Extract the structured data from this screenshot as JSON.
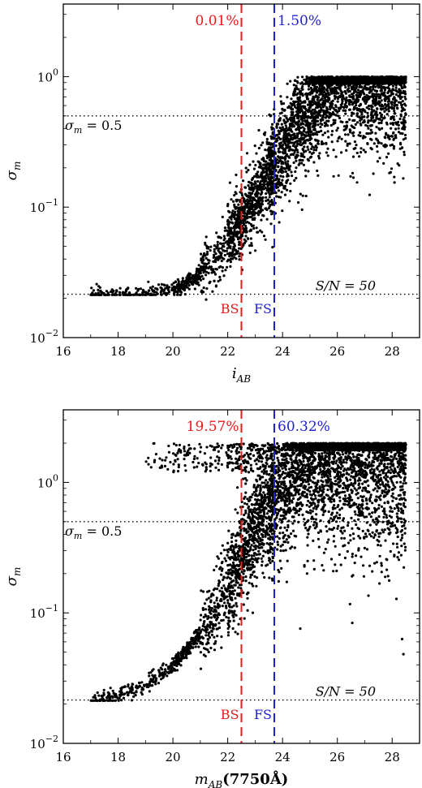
{
  "chart_data": [
    {
      "type": "scatter",
      "panel": "top",
      "xlabel": "i_AB",
      "xlabel_main": "i",
      "xlabel_sub": "AB",
      "xlabel_suffix": "",
      "ylabel": "σ_m",
      "ylabel_main": "σ",
      "ylabel_sub": "m",
      "xlim": [
        16,
        29
      ],
      "ylim": [
        0.01,
        3.6
      ],
      "yscale": "log",
      "xticks": [
        16,
        18,
        20,
        22,
        24,
        26,
        28
      ],
      "yticks": [
        {
          "value": 0.01,
          "base": "10",
          "exp": "−2"
        },
        {
          "value": 0.1,
          "base": "10",
          "exp": "−1"
        },
        {
          "value": 1,
          "base": "10",
          "exp": "0"
        }
      ],
      "hlines": [
        {
          "y": 0.5,
          "style": "dotted",
          "label": "σm = 0.5",
          "label_main": "σ",
          "label_sub": "m",
          "label_rest": " = 0.5",
          "label_side": "left"
        },
        {
          "y": 0.0215,
          "style": "dotted",
          "label": "S/N = 50",
          "label_side": "right"
        }
      ],
      "vlines": [
        {
          "x": 22.5,
          "color": "#e41a1c",
          "style": "dashed",
          "pct": "0.01%",
          "region": "BS"
        },
        {
          "x": 23.7,
          "color": "#1f1fd0",
          "style": "dashed",
          "pct": "1.50%",
          "region": "FS"
        }
      ],
      "sigma_max": 1.0,
      "series": [
        {
          "description": "approx. median trend of point cloud",
          "x": [
            17.0,
            18.0,
            19.0,
            20.0,
            20.5,
            21.0,
            21.5,
            22.0,
            22.5,
            23.0,
            23.5,
            24.0,
            24.5,
            25.0,
            25.5,
            26.0
          ],
          "y": [
            0.0215,
            0.0217,
            0.022,
            0.0235,
            0.026,
            0.031,
            0.04,
            0.055,
            0.08,
            0.12,
            0.18,
            0.27,
            0.4,
            0.58,
            0.8,
            1.0
          ]
        }
      ]
    },
    {
      "type": "scatter",
      "panel": "bottom",
      "xlabel": "m_AB(7750Å)",
      "xlabel_main": "m",
      "xlabel_sub": "AB",
      "xlabel_suffix": "(7750Å)",
      "ylabel": "σ_m",
      "ylabel_main": "σ",
      "ylabel_sub": "m",
      "xlim": [
        16,
        29
      ],
      "ylim": [
        0.01,
        3.6
      ],
      "yscale": "log",
      "xticks": [
        16,
        18,
        20,
        22,
        24,
        26,
        28
      ],
      "yticks": [
        {
          "value": 0.01,
          "base": "10",
          "exp": "−2"
        },
        {
          "value": 0.1,
          "base": "10",
          "exp": "−1"
        },
        {
          "value": 1,
          "base": "10",
          "exp": "0"
        }
      ],
      "hlines": [
        {
          "y": 0.5,
          "style": "dotted",
          "label": "σm = 0.5",
          "label_main": "σ",
          "label_sub": "m",
          "label_rest": " = 0.5",
          "label_side": "left"
        },
        {
          "y": 0.0215,
          "style": "dotted",
          "label": "S/N = 50",
          "label_side": "right"
        }
      ],
      "vlines": [
        {
          "x": 22.5,
          "color": "#e41a1c",
          "style": "dashed",
          "pct": "19.57%",
          "region": "BS"
        },
        {
          "x": 23.7,
          "color": "#1f1fd0",
          "style": "dashed",
          "pct": "60.32%",
          "region": "FS"
        }
      ],
      "sigma_max": 2.0,
      "series": [
        {
          "description": "approx. median trend of point cloud",
          "x": [
            17.0,
            18.0,
            19.0,
            20.0,
            20.5,
            21.0,
            21.5,
            22.0,
            22.5,
            23.0,
            23.5,
            24.0,
            24.5,
            25.0,
            25.5,
            26.0
          ],
          "y": [
            0.021,
            0.023,
            0.028,
            0.04,
            0.052,
            0.07,
            0.1,
            0.16,
            0.28,
            0.45,
            0.7,
            1.0,
            1.3,
            1.6,
            1.8,
            2.0
          ]
        }
      ]
    }
  ],
  "colors": {
    "bs_line": "#e41a1c",
    "fs_line": "#1f1fd0",
    "points": "#000000"
  }
}
